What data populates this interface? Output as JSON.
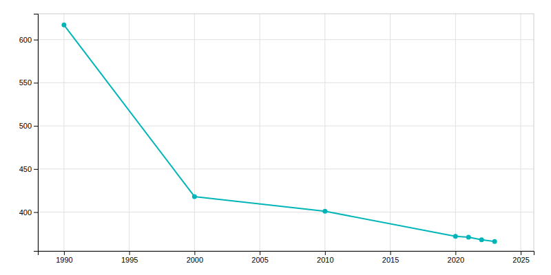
{
  "chart_data": {
    "type": "line",
    "x": [
      1990,
      2000,
      2010,
      2020,
      2021,
      2022,
      2023
    ],
    "values": [
      617,
      418,
      401,
      372,
      371,
      368,
      366
    ],
    "color": "#00b5b8",
    "marker": "circle",
    "xlim": [
      1988,
      2026
    ],
    "ylim": [
      355,
      630
    ],
    "xticks": [
      1990,
      1995,
      2000,
      2005,
      2010,
      2015,
      2020,
      2025
    ],
    "yticks": [
      400,
      450,
      500,
      550,
      600
    ],
    "grid": true
  }
}
